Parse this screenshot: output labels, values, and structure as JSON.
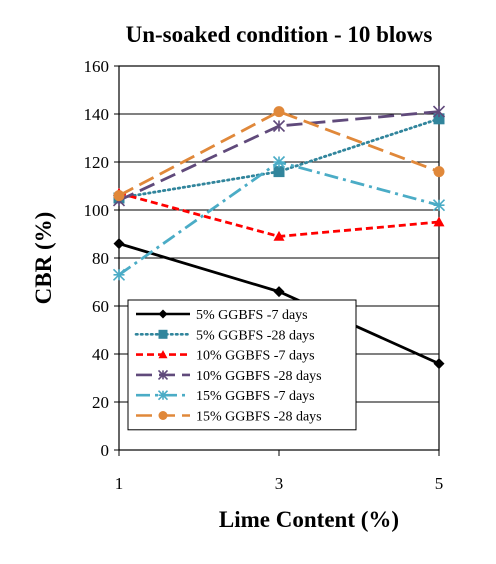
{
  "chart_data": {
    "type": "line",
    "title": "Un-soaked condition - 10 blows",
    "xlabel": "Lime Content (%)",
    "ylabel": "CBR (%)",
    "x": [
      1,
      3,
      5
    ],
    "x_ticks": [
      "1",
      "3",
      "5"
    ],
    "ylim": [
      0,
      160
    ],
    "y_ticks": [
      "0",
      "20",
      "40",
      "60",
      "80",
      "100",
      "120",
      "140",
      "160"
    ],
    "grid": "horizontal",
    "legend_position": "bottom-left",
    "series": [
      {
        "name": "5% GGBFS -7 days",
        "values": [
          86,
          66,
          36
        ],
        "color": "#000000",
        "dash": "solid",
        "marker": "diamond"
      },
      {
        "name": "5% GGBFS -28 days",
        "values": [
          105,
          116,
          138
        ],
        "color": "#31859c",
        "dash": "dot",
        "marker": "square"
      },
      {
        "name": "10% GGBFS -7 days",
        "values": [
          107,
          89,
          95
        ],
        "color": "#ff0000",
        "dash": "dash",
        "marker": "triangle"
      },
      {
        "name": "10% GGBFS -28 days",
        "values": [
          104,
          135,
          141
        ],
        "color": "#604a7b",
        "dash": "longdash",
        "marker": "asterisk"
      },
      {
        "name": "15% GGBFS -7 days",
        "values": [
          73,
          120,
          102
        ],
        "color": "#4bacc6",
        "dash": "dashdot",
        "marker": "star"
      },
      {
        "name": "15% GGBFS -28 days",
        "values": [
          106,
          141,
          116
        ],
        "color": "#e0883a",
        "dash": "longdash",
        "marker": "circle"
      }
    ]
  }
}
